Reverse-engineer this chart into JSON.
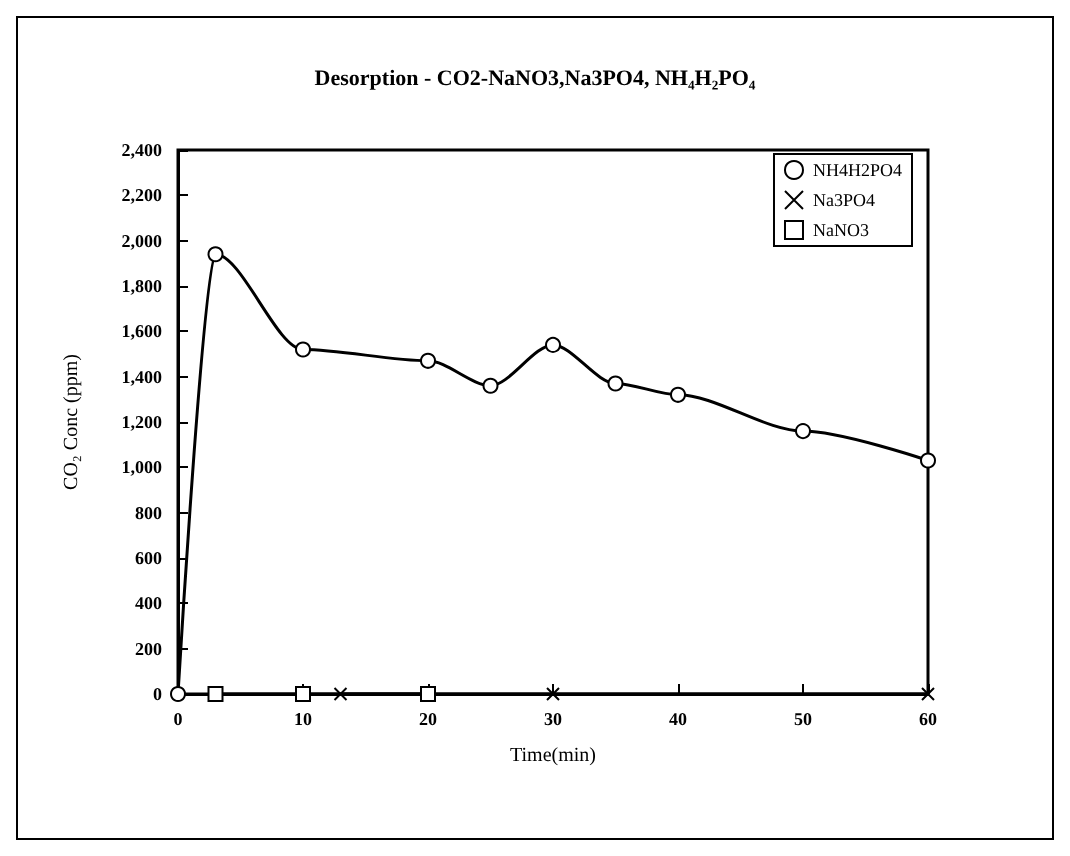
{
  "chart_data": {
    "type": "line",
    "title": "Desorption - CO2-NaNO3,Na3PO4, NH₄H₂PO₄",
    "xlabel": "Time(min)",
    "ylabel": "CO₂ Conc (ppm)",
    "xlim": [
      0,
      60
    ],
    "xticks": [
      0,
      10,
      20,
      30,
      40,
      50,
      60
    ],
    "ylim": [
      0,
      2400
    ],
    "yticks": [
      0,
      200,
      400,
      600,
      800,
      {
        "value": 1000,
        "label": "1,000"
      },
      {
        "value": 1200,
        "label": "1,200"
      },
      {
        "value": 1400,
        "label": "1,400"
      },
      {
        "value": 1600,
        "label": "1,600"
      },
      {
        "value": 1800,
        "label": "1,800"
      },
      {
        "value": 2000,
        "label": "2,000"
      },
      {
        "value": 2200,
        "label": "2,200"
      },
      {
        "value": 2400,
        "label": "2,400"
      }
    ],
    "grid": false,
    "legend": "top right",
    "line_style": "solid",
    "series": [
      {
        "name": "NH4H2PO4",
        "color": "#000000",
        "marker": "circle",
        "x": [
          0,
          3,
          10,
          20,
          25,
          30,
          35,
          40,
          50,
          60
        ],
        "values": [
          0,
          1940,
          1520,
          1470,
          1360,
          1540,
          1370,
          1320,
          1160,
          1030
        ]
      },
      {
        "name": "Na3PO4",
        "color": "#000000",
        "marker": "cross",
        "x": [
          13,
          30,
          60
        ],
        "values": [
          0,
          0,
          0
        ]
      },
      {
        "name": "NaNO3",
        "color": "#000000",
        "marker": "square",
        "x": [
          3,
          10,
          20
        ],
        "values": [
          0,
          0,
          0
        ]
      }
    ]
  }
}
